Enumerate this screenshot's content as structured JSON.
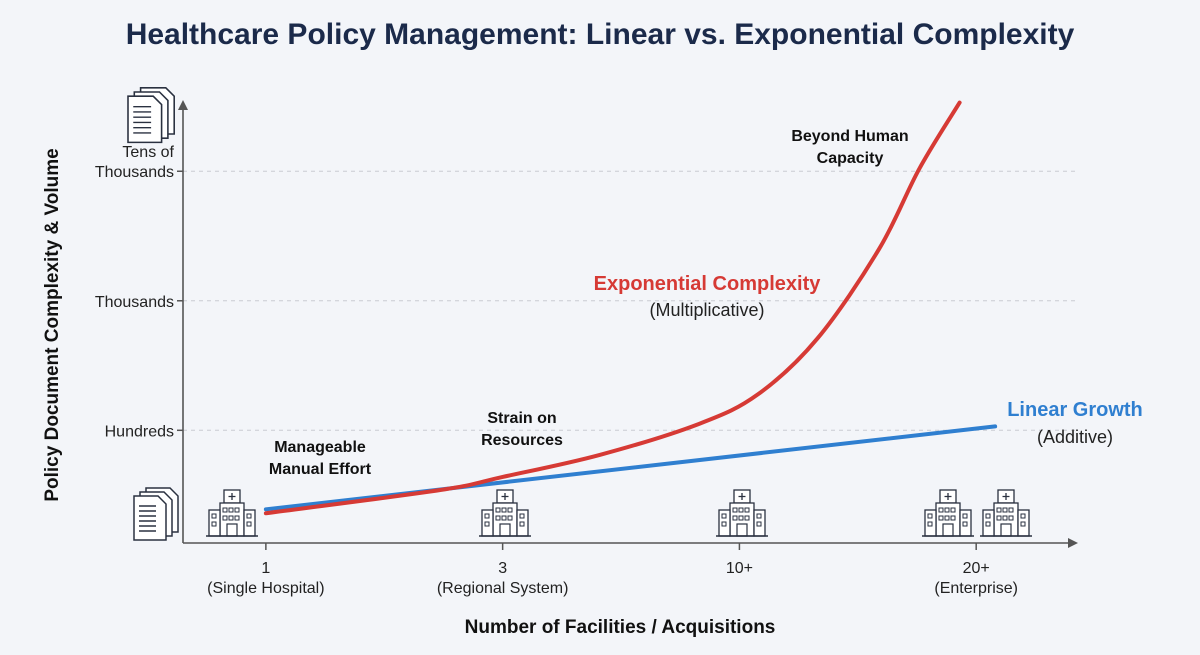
{
  "chart_data": {
    "type": "line",
    "title": "Healthcare Policy Management: Linear vs. Exponential Complexity",
    "xlabel": "Number of Facilities / Acquisitions",
    "ylabel": "Policy Document Complexity & Volume",
    "x_ticks": [
      {
        "value": 0,
        "label": "1",
        "sublabel": "(Single Hospital)"
      },
      {
        "value": 1,
        "label": "3",
        "sublabel": "(Regional System)"
      },
      {
        "value": 2,
        "label": "10+",
        "sublabel": ""
      },
      {
        "value": 3,
        "label": "20+",
        "sublabel": "(Enterprise)"
      }
    ],
    "y_ticks": [
      {
        "value": 1,
        "label": "Hundreds"
      },
      {
        "value": 2,
        "label": "Thousands"
      },
      {
        "value": 3,
        "label": "Tens of Thousands"
      }
    ],
    "xlim": [
      -0.35,
      3.43
    ],
    "ylim": [
      0.13,
      3.55
    ],
    "grid": "horizontal dashed",
    "series": [
      {
        "name": "Linear Growth",
        "note": "(Additive)",
        "color": "#2f7fd0",
        "x": [
          0,
          3.08
        ],
        "y": [
          0.39,
          1.03
        ]
      },
      {
        "name": "Exponential Complexity",
        "note": "(Multiplicative)",
        "color": "#d63a35",
        "x": [
          0,
          0.74,
          1,
          1.41,
          1.83,
          2.08,
          2.33,
          2.59,
          2.76,
          2.93
        ],
        "y": [
          0.36,
          0.54,
          0.64,
          0.81,
          1.05,
          1.28,
          1.71,
          2.4,
          3.02,
          3.53
        ]
      }
    ],
    "annotations": [
      {
        "lines": [
          "Manageable",
          "Manual Effort"
        ]
      },
      {
        "lines": [
          "Strain on",
          "Resources"
        ]
      },
      {
        "lines": [
          "Beyond Human",
          "Capacity"
        ]
      }
    ],
    "icons": {
      "y_axis": "document-stack-icon",
      "x_axis": "hospital-icon",
      "hospital_counts": [
        1,
        1,
        1,
        2
      ]
    }
  }
}
